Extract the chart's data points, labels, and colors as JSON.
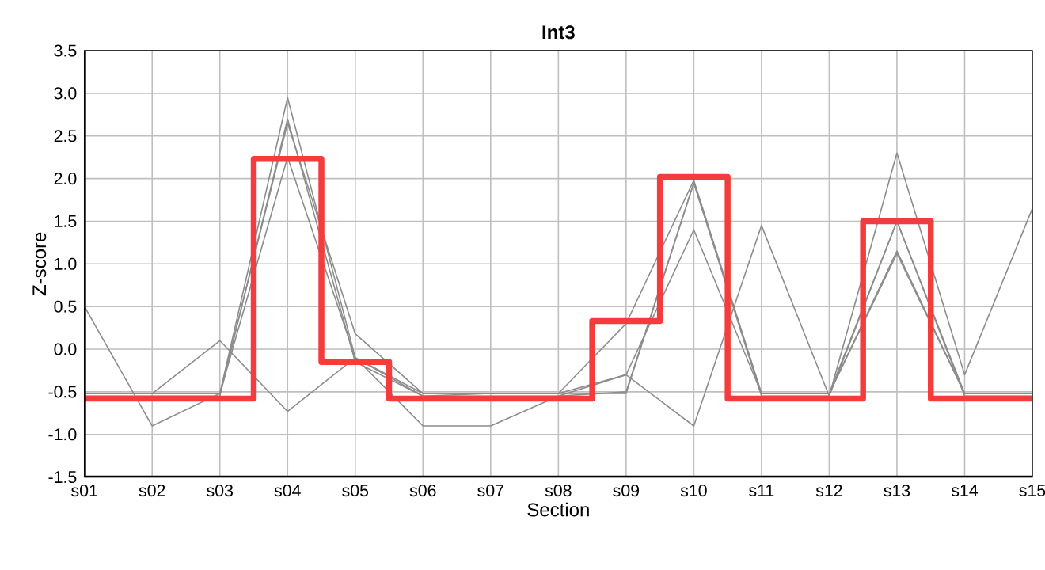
{
  "chart_data": {
    "type": "line",
    "title": "Int3",
    "xlabel": "Section",
    "ylabel": "Z-score",
    "categories": [
      "s01",
      "s02",
      "s03",
      "s04",
      "s05",
      "s06",
      "s07",
      "s08",
      "s09",
      "s10",
      "s11",
      "s12",
      "s13",
      "s14",
      "s15"
    ],
    "ylim": [
      -1.5,
      3.5
    ],
    "yticks": [
      {
        "value": -1.5,
        "label": "-1.5"
      },
      {
        "value": -1.0,
        "label": "-1.0"
      },
      {
        "value": -0.5,
        "label": "-0.5"
      },
      {
        "value": 0,
        "label": "0.0"
      },
      {
        "value": 0.5,
        "label": "0.5"
      },
      {
        "value": 1.0,
        "label": "1.0"
      },
      {
        "value": 1.5,
        "label": "1.5"
      },
      {
        "value": 2.0,
        "label": "2.0"
      },
      {
        "value": 2.5,
        "label": "2.5"
      },
      {
        "value": 3.0,
        "label": "3.0"
      },
      {
        "value": 3.5,
        "label": "3.5"
      }
    ],
    "grid": true,
    "marker": "none",
    "line_style": "solid",
    "series": [
      {
        "color": "#8c8c8c",
        "values": [
          0.5,
          -0.9,
          -0.52,
          2.95,
          -0.1,
          -0.52,
          -0.52,
          -0.52,
          -0.52,
          1.95,
          -0.52,
          -0.52,
          1.15,
          -0.52,
          -0.52
        ]
      },
      {
        "color": "#8c8c8c",
        "values": [
          -0.52,
          -0.52,
          0.1,
          -0.73,
          -0.1,
          -0.9,
          -0.9,
          -0.55,
          -0.3,
          -0.9,
          1.45,
          -0.55,
          2.3,
          -0.3,
          1.65
        ]
      },
      {
        "color": "#8c8c8c",
        "values": [
          -0.52,
          -0.52,
          -0.52,
          2.65,
          0.18,
          -0.52,
          -0.52,
          -0.52,
          -0.3,
          1.4,
          -0.52,
          -0.52,
          1.5,
          -0.52,
          -0.52
        ]
      },
      {
        "color": "#8c8c8c",
        "values": [
          -0.52,
          -0.52,
          -0.52,
          2.25,
          -0.1,
          -0.55,
          -0.52,
          -0.52,
          0.3,
          1.98,
          -0.52,
          -0.52,
          1.12,
          -0.52,
          -0.52
        ]
      },
      {
        "color": "#8c8c8c",
        "values": [
          -0.55,
          -0.55,
          -0.55,
          2.7,
          -0.15,
          -0.55,
          -0.55,
          -0.55,
          -0.5,
          1.95,
          -0.55,
          -0.55,
          1.5,
          -0.55,
          -0.55
        ]
      },
      {
        "type": "step",
        "color": "#f43c3c",
        "values": [
          -0.58,
          -0.58,
          -0.58,
          2.23,
          -0.15,
          -0.58,
          -0.58,
          -0.58,
          0.33,
          2.02,
          -0.58,
          -0.58,
          1.5,
          -0.58,
          -0.58
        ]
      }
    ]
  }
}
